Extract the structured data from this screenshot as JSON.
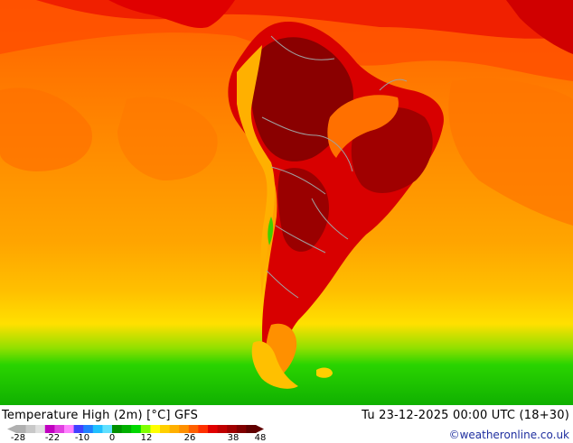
{
  "title": "Temperature High (2m) [°C] GFS",
  "datetime": "Tu 23-12-2025 00:00 UTC (18+30)",
  "credit": "©weatheronline.co.uk",
  "legend": {
    "ticks": [
      "-28",
      "-22",
      "-10",
      "0",
      "12",
      "26",
      "38",
      "48"
    ],
    "colors": [
      "#b0b0b0",
      "#c8c8c8",
      "#e0e0e0",
      "#c000c0",
      "#e040e0",
      "#ff80ff",
      "#4040ff",
      "#2080ff",
      "#20c0ff",
      "#60e0ff",
      "#009000",
      "#00b000",
      "#00d800",
      "#80ff00",
      "#ffff00",
      "#ffd000",
      "#ffb000",
      "#ff9000",
      "#ff6000",
      "#ff3000",
      "#e00000",
      "#c00000",
      "#a00000",
      "#800000",
      "#600000"
    ]
  },
  "map_colors": {
    "ocean_base": "#ff9a00",
    "ocean_warm": "#ff7b00",
    "north_band": "#ff5a00",
    "land_hot": "#e00000",
    "land_very_hot": "#b00000",
    "land_extreme": "#8a0000",
    "cool_south_1": "#ffc800",
    "cool_south_2": "#ffe000",
    "green_south": "#2ad400",
    "green_deep": "#13b000",
    "border": "#a0a0a0"
  }
}
